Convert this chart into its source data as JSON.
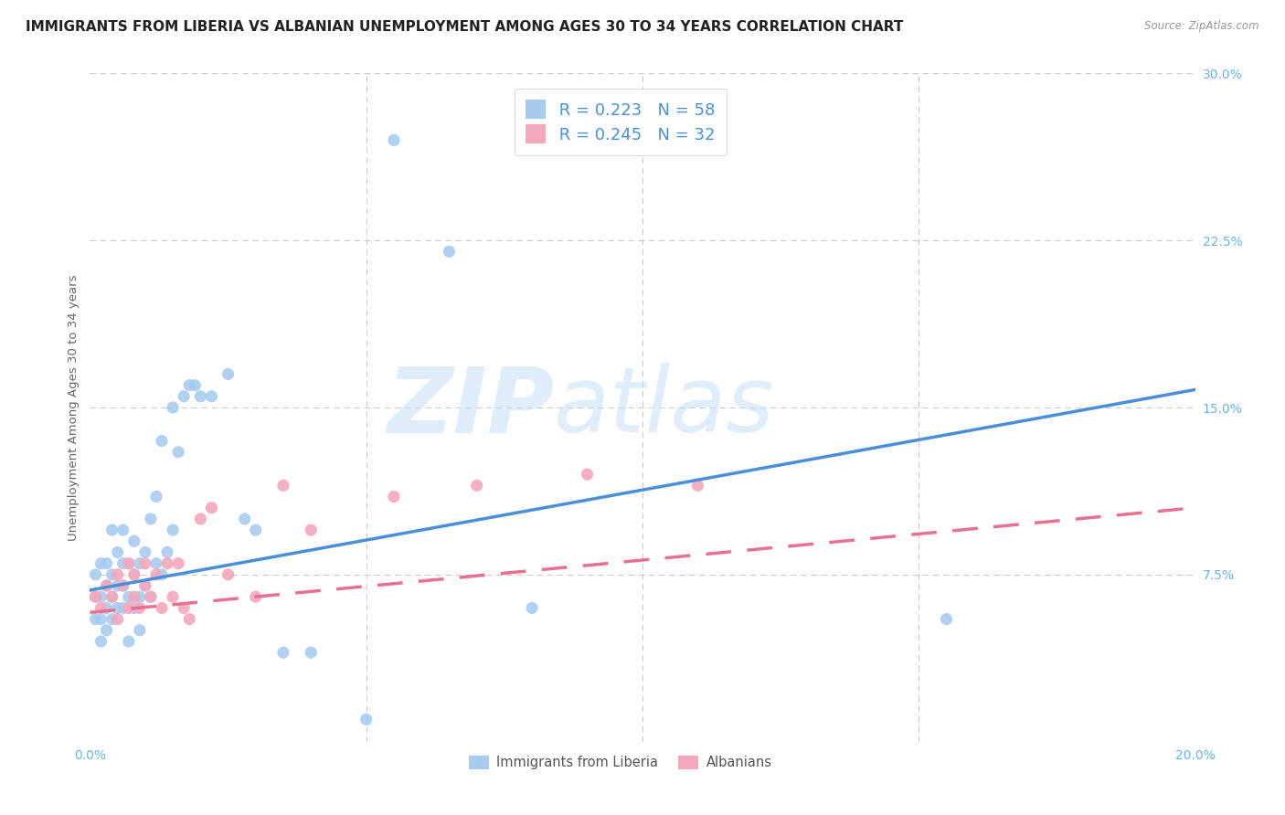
{
  "title": "IMMIGRANTS FROM LIBERIA VS ALBANIAN UNEMPLOYMENT AMONG AGES 30 TO 34 YEARS CORRELATION CHART",
  "source": "Source: ZipAtlas.com",
  "ylabel": "Unemployment Among Ages 30 to 34 years",
  "xlim": [
    0.0,
    0.2
  ],
  "ylim": [
    0.0,
    0.3
  ],
  "xticks": [
    0.0,
    0.05,
    0.1,
    0.15,
    0.2
  ],
  "xticklabels": [
    "0.0%",
    "",
    "",
    "",
    "20.0%"
  ],
  "yticks": [
    0.0,
    0.075,
    0.15,
    0.225,
    0.3
  ],
  "yticklabels": [
    "",
    "7.5%",
    "15.0%",
    "22.5%",
    "30.0%"
  ],
  "liberia_color": "#A8CCF0",
  "albanian_color": "#F4A8BC",
  "liberia_line_color": "#4A90D9",
  "albanian_line_color": "#E87090",
  "liberia_R": 0.223,
  "liberia_N": 58,
  "albanian_R": 0.245,
  "albanian_N": 32,
  "watermark_zip": "ZIP",
  "watermark_atlas": "atlas",
  "background_color": "#ffffff",
  "grid_color": "#cccccc",
  "liberia_scatter_x": [
    0.001,
    0.001,
    0.001,
    0.002,
    0.002,
    0.002,
    0.002,
    0.003,
    0.003,
    0.003,
    0.003,
    0.004,
    0.004,
    0.004,
    0.004,
    0.005,
    0.005,
    0.005,
    0.006,
    0.006,
    0.006,
    0.006,
    0.007,
    0.007,
    0.007,
    0.008,
    0.008,
    0.008,
    0.009,
    0.009,
    0.009,
    0.01,
    0.01,
    0.011,
    0.011,
    0.012,
    0.012,
    0.013,
    0.013,
    0.014,
    0.015,
    0.015,
    0.016,
    0.017,
    0.018,
    0.019,
    0.02,
    0.022,
    0.025,
    0.028,
    0.03,
    0.035,
    0.04,
    0.05,
    0.055,
    0.065,
    0.08,
    0.155
  ],
  "liberia_scatter_y": [
    0.055,
    0.065,
    0.075,
    0.045,
    0.055,
    0.065,
    0.08,
    0.05,
    0.06,
    0.07,
    0.08,
    0.055,
    0.065,
    0.075,
    0.095,
    0.06,
    0.07,
    0.085,
    0.06,
    0.07,
    0.08,
    0.095,
    0.045,
    0.065,
    0.08,
    0.06,
    0.075,
    0.09,
    0.05,
    0.065,
    0.08,
    0.07,
    0.085,
    0.065,
    0.1,
    0.08,
    0.11,
    0.075,
    0.135,
    0.085,
    0.095,
    0.15,
    0.13,
    0.155,
    0.16,
    0.16,
    0.155,
    0.155,
    0.165,
    0.1,
    0.095,
    0.04,
    0.04,
    0.01,
    0.27,
    0.22,
    0.06,
    0.055
  ],
  "albanian_scatter_x": [
    0.001,
    0.002,
    0.003,
    0.004,
    0.005,
    0.005,
    0.006,
    0.007,
    0.007,
    0.008,
    0.008,
    0.009,
    0.01,
    0.01,
    0.011,
    0.012,
    0.013,
    0.014,
    0.015,
    0.016,
    0.017,
    0.018,
    0.02,
    0.022,
    0.025,
    0.03,
    0.035,
    0.04,
    0.055,
    0.07,
    0.09,
    0.11
  ],
  "albanian_scatter_y": [
    0.065,
    0.06,
    0.07,
    0.065,
    0.075,
    0.055,
    0.07,
    0.06,
    0.08,
    0.065,
    0.075,
    0.06,
    0.07,
    0.08,
    0.065,
    0.075,
    0.06,
    0.08,
    0.065,
    0.08,
    0.06,
    0.055,
    0.1,
    0.105,
    0.075,
    0.065,
    0.115,
    0.095,
    0.11,
    0.115,
    0.12,
    0.115
  ],
  "liberia_trend_x": [
    0.0,
    0.2
  ],
  "liberia_trend_y": [
    0.068,
    0.158
  ],
  "albanian_trend_x": [
    0.0,
    0.2
  ],
  "albanian_trend_y": [
    0.058,
    0.105
  ],
  "tick_color": "#6BB3E8",
  "title_fontsize": 11,
  "axis_label_fontsize": 9.5,
  "tick_fontsize": 10,
  "legend_fontsize": 13
}
